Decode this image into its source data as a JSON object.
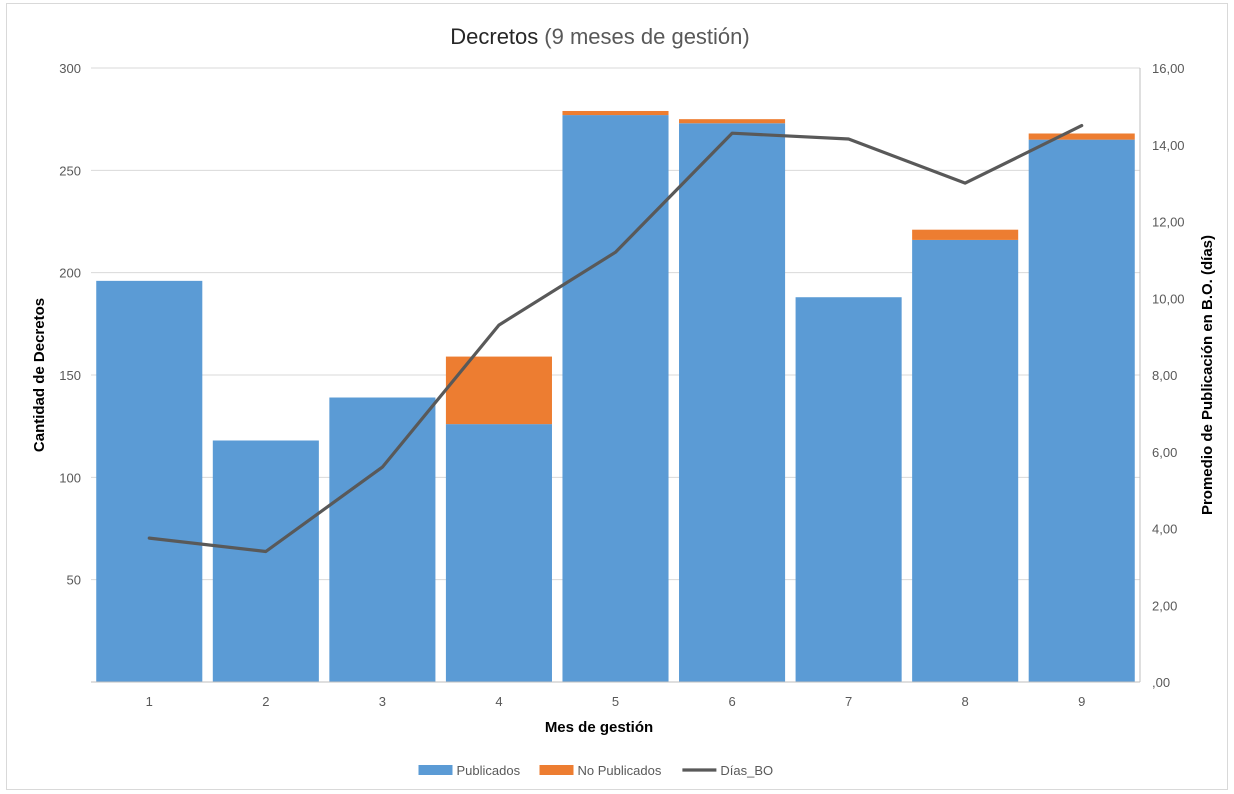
{
  "chart_data": {
    "type": "bar",
    "title": "Decretos",
    "subtitle": "(9 meses de gestión)",
    "xlabel": "Mes de gestión",
    "ylabel": "Cantidad de Decretos",
    "y2label": "Promedio de Publicación en B.O. (días)",
    "categories": [
      "1",
      "2",
      "3",
      "4",
      "5",
      "6",
      "7",
      "8",
      "9"
    ],
    "stacked": true,
    "ylim": [
      0,
      300
    ],
    "yticks": [
      50,
      100,
      150,
      200,
      250,
      300
    ],
    "y2lim": [
      0,
      16
    ],
    "y2ticks": [
      ",00",
      "2,00",
      "4,00",
      "6,00",
      "8,00",
      "10,00",
      "12,00",
      "14,00",
      "16,00"
    ],
    "grid": true,
    "legend_position": "bottom",
    "series": [
      {
        "name": "Publicados",
        "type": "bar",
        "axis": "left",
        "color": "#5b9bd5",
        "values": [
          196,
          118,
          139,
          126,
          277,
          273,
          188,
          216,
          265
        ]
      },
      {
        "name": "No Publicados",
        "type": "bar",
        "axis": "left",
        "color": "#ed7d31",
        "values": [
          0,
          0,
          0,
          33,
          2,
          2,
          0,
          5,
          3
        ]
      },
      {
        "name": "Días_BO",
        "type": "line",
        "axis": "right",
        "color": "#595959",
        "values": [
          3.75,
          3.4,
          5.6,
          9.3,
          11.2,
          14.3,
          14.15,
          13.0,
          14.5
        ]
      }
    ]
  }
}
